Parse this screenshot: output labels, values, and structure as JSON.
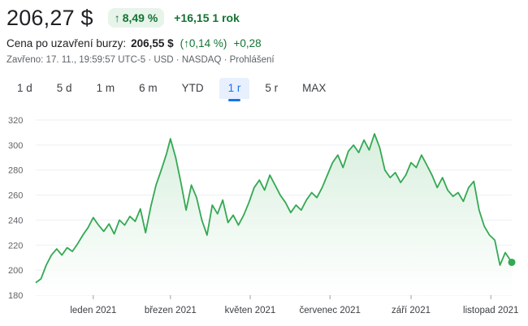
{
  "quote": {
    "price": "206,27 $",
    "change_arrow": "↑",
    "change_pct": "8,49 %",
    "change_abs": "+16,15",
    "change_period": "1 rok",
    "close_label": "Cena po uzavření burzy:",
    "close_value": "206,55 $",
    "close_pct": "(↑0,14 %)",
    "close_abs": "+0,28",
    "meta": "Zavřeno: 17. 11., 19:59:57 UTC-5 · USD · NASDAQ · Prohlášení"
  },
  "tabs": [
    {
      "label": "1 d",
      "active": false
    },
    {
      "label": "5 d",
      "active": false
    },
    {
      "label": "1 m",
      "active": false
    },
    {
      "label": "6 m",
      "active": false
    },
    {
      "label": "YTD",
      "active": false
    },
    {
      "label": "1 r",
      "active": true
    },
    {
      "label": "5 r",
      "active": false
    },
    {
      "label": "MAX",
      "active": false
    }
  ],
  "colors": {
    "line": "#34a853",
    "positive": "#137333",
    "fill_top": "#d6eedc",
    "grid": "#eceff1"
  },
  "chart_data": {
    "type": "area",
    "title": "",
    "xlabel": "",
    "ylabel": "",
    "ylim": [
      180,
      320
    ],
    "y_ticks": [
      180,
      200,
      220,
      240,
      260,
      280,
      300,
      320
    ],
    "x_tick_labels": [
      "leden 2021",
      "březen 2021",
      "květen 2021",
      "červenec 2021",
      "září 2021",
      "listopad 2021"
    ],
    "x_tick_dates": [
      "2021-01-01",
      "2021-03-01",
      "2021-05-01",
      "2021-07-01",
      "2021-09-01",
      "2021-11-01"
    ],
    "x_range": [
      "2020-11-18",
      "2021-11-17"
    ],
    "grid": true,
    "series": [
      {
        "points": [
          [
            "2020-11-18",
            190
          ],
          [
            "2020-11-22",
            193
          ],
          [
            "2020-11-26",
            204
          ],
          [
            "2020-11-30",
            212
          ],
          [
            "2020-12-04",
            217
          ],
          [
            "2020-12-08",
            212
          ],
          [
            "2020-12-12",
            218
          ],
          [
            "2020-12-16",
            215
          ],
          [
            "2020-12-20",
            221
          ],
          [
            "2020-12-24",
            228
          ],
          [
            "2020-12-28",
            234
          ],
          [
            "2021-01-01",
            242
          ],
          [
            "2021-01-05",
            236
          ],
          [
            "2021-01-09",
            231
          ],
          [
            "2021-01-13",
            237
          ],
          [
            "2021-01-17",
            229
          ],
          [
            "2021-01-21",
            240
          ],
          [
            "2021-01-25",
            236
          ],
          [
            "2021-01-29",
            243
          ],
          [
            "2021-02-02",
            239
          ],
          [
            "2021-02-06",
            249
          ],
          [
            "2021-02-10",
            230
          ],
          [
            "2021-02-14",
            251
          ],
          [
            "2021-02-18",
            268
          ],
          [
            "2021-02-22",
            280
          ],
          [
            "2021-02-26",
            293
          ],
          [
            "2021-03-01",
            305
          ],
          [
            "2021-03-05",
            290
          ],
          [
            "2021-03-09",
            270
          ],
          [
            "2021-03-13",
            248
          ],
          [
            "2021-03-17",
            268
          ],
          [
            "2021-03-21",
            258
          ],
          [
            "2021-03-25",
            240
          ],
          [
            "2021-03-29",
            228
          ],
          [
            "2021-04-02",
            252
          ],
          [
            "2021-04-06",
            245
          ],
          [
            "2021-04-10",
            256
          ],
          [
            "2021-04-14",
            238
          ],
          [
            "2021-04-18",
            244
          ],
          [
            "2021-04-22",
            236
          ],
          [
            "2021-04-26",
            244
          ],
          [
            "2021-04-30",
            254
          ],
          [
            "2021-05-04",
            266
          ],
          [
            "2021-05-08",
            272
          ],
          [
            "2021-05-12",
            264
          ],
          [
            "2021-05-16",
            276
          ],
          [
            "2021-05-20",
            268
          ],
          [
            "2021-05-24",
            260
          ],
          [
            "2021-05-28",
            254
          ],
          [
            "2021-06-01",
            246
          ],
          [
            "2021-06-05",
            252
          ],
          [
            "2021-06-09",
            248
          ],
          [
            "2021-06-13",
            256
          ],
          [
            "2021-06-17",
            262
          ],
          [
            "2021-06-21",
            258
          ],
          [
            "2021-06-25",
            266
          ],
          [
            "2021-06-29",
            276
          ],
          [
            "2021-07-03",
            286
          ],
          [
            "2021-07-07",
            292
          ],
          [
            "2021-07-11",
            282
          ],
          [
            "2021-07-15",
            295
          ],
          [
            "2021-07-19",
            300
          ],
          [
            "2021-07-23",
            294
          ],
          [
            "2021-07-27",
            304
          ],
          [
            "2021-07-31",
            296
          ],
          [
            "2021-08-04",
            309
          ],
          [
            "2021-08-08",
            298
          ],
          [
            "2021-08-12",
            280
          ],
          [
            "2021-08-16",
            274
          ],
          [
            "2021-08-20",
            278
          ],
          [
            "2021-08-24",
            270
          ],
          [
            "2021-08-28",
            276
          ],
          [
            "2021-09-01",
            286
          ],
          [
            "2021-09-05",
            282
          ],
          [
            "2021-09-09",
            292
          ],
          [
            "2021-09-13",
            284
          ],
          [
            "2021-09-17",
            276
          ],
          [
            "2021-09-21",
            266
          ],
          [
            "2021-09-25",
            274
          ],
          [
            "2021-09-29",
            264
          ],
          [
            "2021-10-03",
            259
          ],
          [
            "2021-10-07",
            262
          ],
          [
            "2021-10-11",
            255
          ],
          [
            "2021-10-15",
            266
          ],
          [
            "2021-10-19",
            271
          ],
          [
            "2021-10-23",
            248
          ],
          [
            "2021-10-27",
            235
          ],
          [
            "2021-10-31",
            228
          ],
          [
            "2021-11-04",
            224
          ],
          [
            "2021-11-08",
            204
          ],
          [
            "2021-11-12",
            214
          ],
          [
            "2021-11-17",
            206.27
          ]
        ]
      }
    ]
  }
}
